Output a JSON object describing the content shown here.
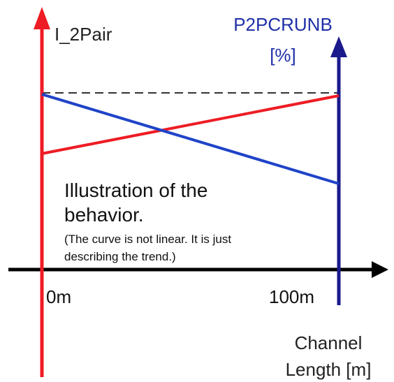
{
  "left_axis": {
    "label": "I_2Pair"
  },
  "right_axis": {
    "label": "P2PCRUNB",
    "unit": "[%]"
  },
  "x_axis": {
    "start_label": "0m",
    "end_label": "100m",
    "label_line1": "Channel",
    "label_line2": "Length [m]"
  },
  "note": {
    "line1": "Illustration of the",
    "line2": "behavior.",
    "small_line1": "(The curve is not linear. It is just",
    "small_line2": "describing the trend.)"
  }
}
